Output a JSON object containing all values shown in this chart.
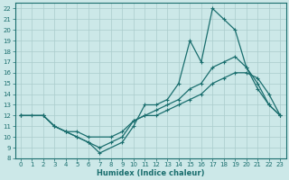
{
  "xlabel": "Humidex (Indice chaleur)",
  "bg_color": "#cce8e8",
  "grid_color": "#aacccc",
  "line_color": "#1a6e6e",
  "xlim": [
    -0.5,
    23.5
  ],
  "ylim": [
    8,
    22.5
  ],
  "xticks": [
    0,
    1,
    2,
    3,
    4,
    5,
    6,
    7,
    8,
    9,
    10,
    11,
    12,
    13,
    14,
    15,
    16,
    17,
    18,
    19,
    20,
    21,
    22,
    23
  ],
  "yticks": [
    8,
    9,
    10,
    11,
    12,
    13,
    14,
    15,
    16,
    17,
    18,
    19,
    20,
    21,
    22
  ],
  "line1_x": [
    0,
    1,
    2,
    3,
    4,
    5,
    6,
    7,
    9,
    10,
    11,
    12,
    13,
    14,
    15,
    16,
    17,
    18,
    19,
    20,
    21,
    22,
    23
  ],
  "line1_y": [
    12,
    12,
    12,
    11,
    10.5,
    10,
    9.5,
    8.5,
    9.5,
    11,
    13,
    13,
    13.5,
    15,
    19,
    17,
    22,
    21,
    20,
    16.5,
    14.5,
    13,
    12
  ],
  "line2_x": [
    0,
    2,
    3,
    4,
    5,
    6,
    7,
    8,
    9,
    10,
    11,
    12,
    13,
    14,
    15,
    16,
    17,
    18,
    19,
    20,
    21,
    22,
    23
  ],
  "line2_y": [
    12,
    12,
    11,
    10.5,
    10,
    9.5,
    9,
    9.5,
    10,
    11.5,
    12,
    12.5,
    13,
    13.5,
    14.5,
    15,
    16.5,
    17,
    17.5,
    16.5,
    15,
    13,
    12
  ],
  "line3_x": [
    0,
    2,
    3,
    4,
    5,
    6,
    8,
    9,
    10,
    11,
    12,
    13,
    14,
    15,
    16,
    17,
    18,
    19,
    20,
    21,
    22,
    23
  ],
  "line3_y": [
    12,
    12,
    11,
    10.5,
    10.5,
    10,
    10,
    10.5,
    11.5,
    12,
    12,
    12.5,
    13,
    13.5,
    14,
    15,
    15.5,
    16,
    16,
    15.5,
    14,
    12
  ]
}
